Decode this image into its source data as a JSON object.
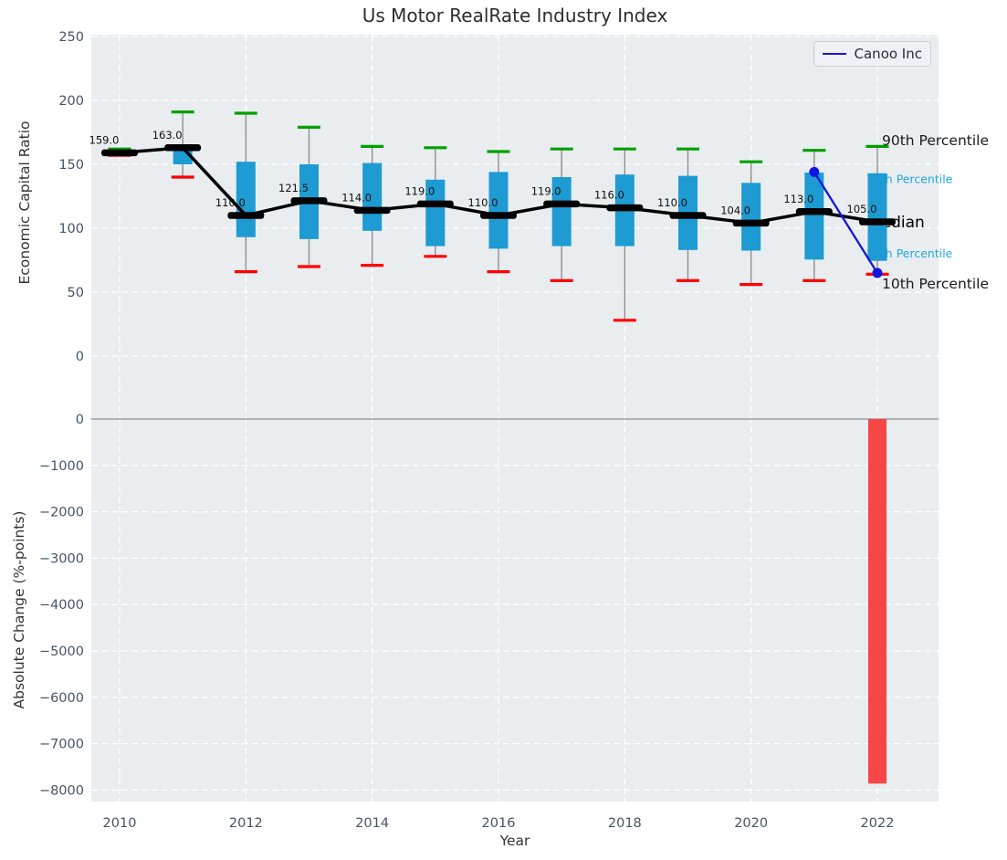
{
  "title": "Us Motor RealRate Industry Index",
  "legend": {
    "label": "Canoo Inc",
    "line_color": "#1414e0"
  },
  "axes": {
    "top": {
      "ylabel": "Economic Capital Ratio",
      "ytick_values": [
        250,
        200,
        150,
        100,
        50,
        0
      ],
      "ytick_labels": [
        "250",
        "200",
        "150",
        "100",
        "50",
        "0"
      ]
    },
    "bottom": {
      "ylabel": "Absolute Change (%-points)",
      "ytick_values": [
        0,
        -1000,
        -2000,
        -3000,
        -4000,
        -5000,
        -6000,
        -7000,
        -8000
      ],
      "ytick_labels": [
        "0",
        "−1000",
        "−2000",
        "−3000",
        "−4000",
        "−5000",
        "−6000",
        "−7000",
        "−8000"
      ]
    },
    "x": {
      "label": "Year",
      "tick_values": [
        2010,
        2012,
        2014,
        2016,
        2018,
        2020,
        2022
      ],
      "tick_labels": [
        "2010",
        "2012",
        "2014",
        "2016",
        "2018",
        "2020",
        "2022"
      ]
    }
  },
  "colors": {
    "plot_background": "#e9edf0",
    "grid": "#ffffff",
    "tick_text": "#44546a",
    "box_fill": "#1d9bd2",
    "whisker_line": "#888888",
    "cap_high": "#00a000",
    "cap_low": "#ff0000",
    "median": "#000000",
    "median_label": "#111111",
    "canoo_line": "#1414e0",
    "bar_fill": "#f84545",
    "zero_line": "#a9a9a9",
    "percentile_cyan": "#22a7e0",
    "percentile_black": "#1a1a1a"
  },
  "chart_data": [
    {
      "type": "box",
      "panel": "top",
      "title": "Us Motor RealRate Industry Index",
      "xlabel": "Year",
      "ylabel": "Economic Capital Ratio",
      "ylim": [
        -44,
        250
      ],
      "grid": true,
      "legend_position": "upper right",
      "years": [
        2010,
        2011,
        2012,
        2013,
        2014,
        2015,
        2016,
        2017,
        2018,
        2019,
        2020,
        2021,
        2022
      ],
      "boxes": [
        {
          "year": 2010,
          "whisker_low": 157,
          "q1": 157,
          "median": 159,
          "q3": 161,
          "whisker_high": 162,
          "median_label": "159.0"
        },
        {
          "year": 2011,
          "whisker_low": 140,
          "q1": 150,
          "median": 163,
          "q3": 163.5,
          "whisker_high": 191,
          "median_label": "163.0"
        },
        {
          "year": 2012,
          "whisker_low": 66,
          "q1": 93,
          "median": 110,
          "q3": 152,
          "whisker_high": 190,
          "median_label": "110.0"
        },
        {
          "year": 2013,
          "whisker_low": 70,
          "q1": 91.5,
          "median": 121.5,
          "q3": 150,
          "whisker_high": 179,
          "median_label": "121.5"
        },
        {
          "year": 2014,
          "whisker_low": 71,
          "q1": 98,
          "median": 114,
          "q3": 151,
          "whisker_high": 164,
          "median_label": "114.0"
        },
        {
          "year": 2015,
          "whisker_low": 78,
          "q1": 86,
          "median": 119,
          "q3": 138,
          "whisker_high": 163,
          "median_label": "119.0"
        },
        {
          "year": 2016,
          "whisker_low": 66,
          "q1": 84,
          "median": 110,
          "q3": 144,
          "whisker_high": 160,
          "median_label": "110.0"
        },
        {
          "year": 2017,
          "whisker_low": 59,
          "q1": 86,
          "median": 119,
          "q3": 140,
          "whisker_high": 162,
          "median_label": "119.0"
        },
        {
          "year": 2018,
          "whisker_low": 28,
          "q1": 86,
          "median": 116,
          "q3": 142,
          "whisker_high": 162,
          "median_label": "116.0"
        },
        {
          "year": 2019,
          "whisker_low": 59,
          "q1": 83,
          "median": 110,
          "q3": 141,
          "whisker_high": 162,
          "median_label": "110.0"
        },
        {
          "year": 2020,
          "whisker_low": 56,
          "q1": 82.5,
          "median": 104,
          "q3": 135.5,
          "whisker_high": 152,
          "median_label": "104.0"
        },
        {
          "year": 2021,
          "whisker_low": 59,
          "q1": 75.5,
          "median": 113,
          "q3": 143.5,
          "whisker_high": 161,
          "median_label": "113.0"
        },
        {
          "year": 2022,
          "whisker_low": 64,
          "q1": 74.5,
          "median": 105,
          "q3": 143,
          "whisker_high": 164,
          "median_label": "105.0"
        }
      ],
      "series": [
        {
          "name": "Canoo Inc",
          "x": [
            2021,
            2022
          ],
          "y": [
            144,
            65
          ],
          "marker": "circle"
        }
      ],
      "annotations": [
        {
          "role": "p90",
          "text": "90th Percentile",
          "color_key": "percentile_black",
          "size": 15.5
        },
        {
          "role": "p75",
          "text": "75th Percentile",
          "color_key": "percentile_cyan",
          "size": 12.5
        },
        {
          "role": "median",
          "text": "Median",
          "color_key": "median",
          "size": 17
        },
        {
          "role": "p25",
          "text": "25th Percentile",
          "color_key": "percentile_cyan",
          "size": 12.5
        },
        {
          "role": "p10",
          "text": "10th Percentile",
          "color_key": "percentile_black",
          "size": 15.5
        }
      ]
    },
    {
      "type": "bar",
      "panel": "bottom",
      "xlabel": "Year",
      "ylabel": "Absolute Change (%-points)",
      "ylim": [
        -8300,
        140
      ],
      "grid": true,
      "categories": [
        2010,
        2011,
        2012,
        2013,
        2014,
        2015,
        2016,
        2017,
        2018,
        2019,
        2020,
        2021,
        2022
      ],
      "values": [
        0,
        0,
        0,
        0,
        0,
        0,
        0,
        0,
        0,
        0,
        0,
        0,
        -7860
      ]
    }
  ]
}
